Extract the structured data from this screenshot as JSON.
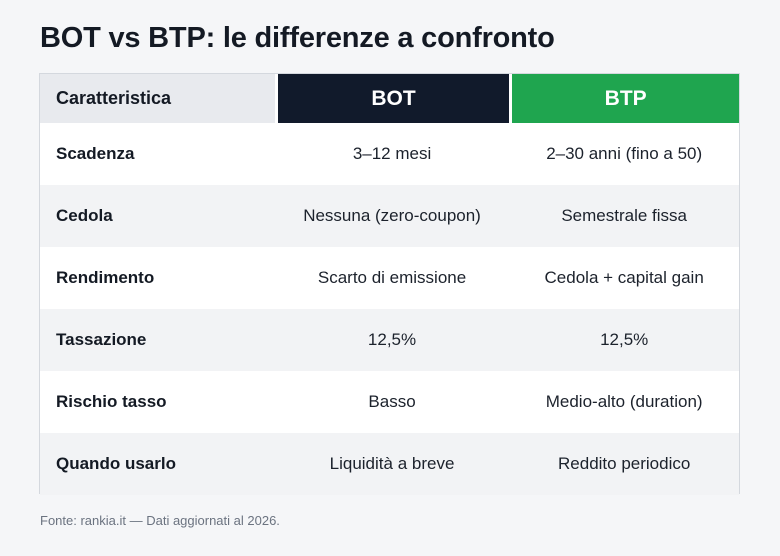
{
  "title": "BOT vs BTP: le differenze a confronto",
  "table": {
    "headers": {
      "feature": "Caratteristica",
      "bot": "BOT",
      "btp": "BTP"
    },
    "rows": [
      {
        "feature": "Scadenza",
        "bot": "3–12 mesi",
        "btp": "2–30 anni (fino a 50)"
      },
      {
        "feature": "Cedola",
        "bot": "Nessuna (zero-coupon)",
        "btp": "Semestrale fissa"
      },
      {
        "feature": "Rendimento",
        "bot": "Scarto di emissione",
        "btp": "Cedola + capital gain"
      },
      {
        "feature": "Tassazione",
        "bot": "12,5%",
        "btp": "12,5%"
      },
      {
        "feature": "Rischio tasso",
        "bot": "Basso",
        "btp": "Medio-alto (duration)"
      },
      {
        "feature": "Quando usarlo",
        "bot": "Liquidità a breve",
        "btp": "Reddito periodico"
      }
    ]
  },
  "source": "Fonte: rankia.it — Dati aggiornati al 2026.",
  "colors": {
    "bot_header": "#111a2b",
    "btp_header": "#1fa54f",
    "feature_header": "#e8eaee",
    "row_alt": "#f2f3f5"
  }
}
